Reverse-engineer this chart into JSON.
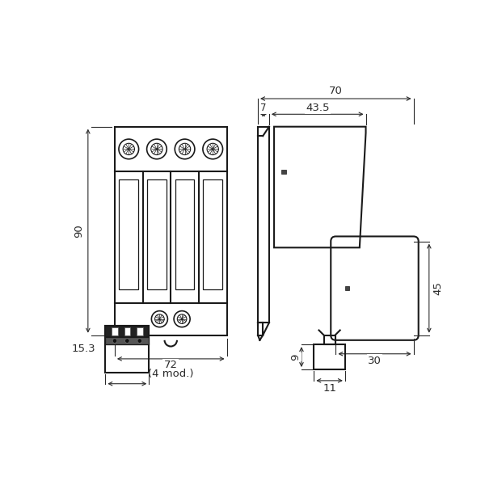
{
  "bg_color": "#ffffff",
  "line_color": "#1a1a1a",
  "dim_color": "#2a2a2a",
  "fig_size": [
    6.0,
    6.0
  ],
  "dpi": 100
}
